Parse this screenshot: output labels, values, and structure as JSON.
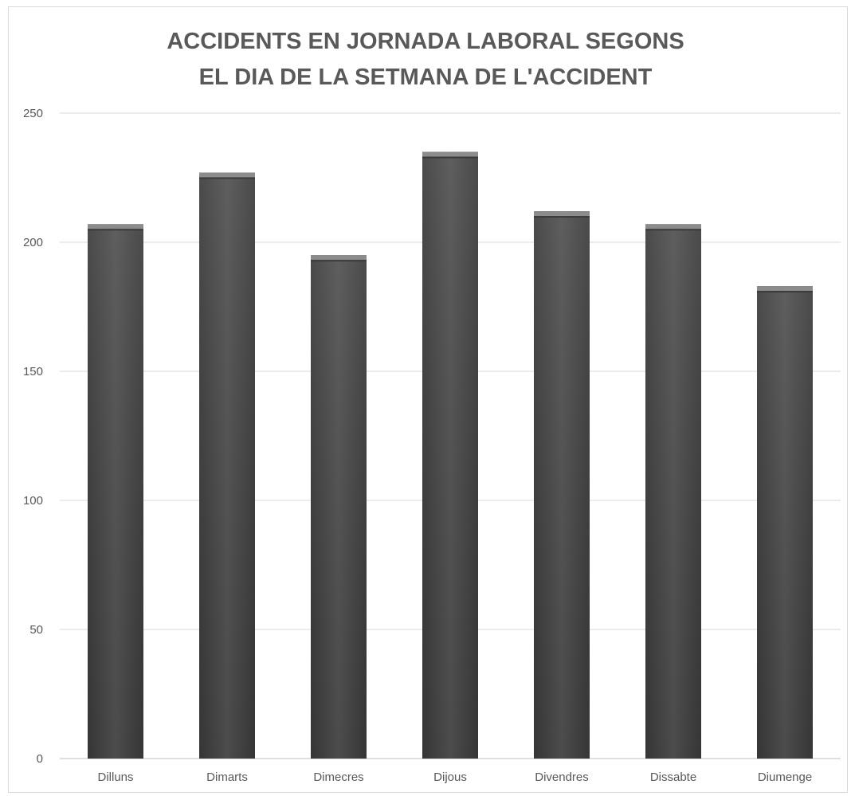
{
  "chart_data": {
    "type": "bar",
    "title_lines": [
      "ACCIDENTS EN JORNADA LABORAL SEGONS",
      "EL DIA DE LA SETMANA DE L'ACCIDENT"
    ],
    "categories": [
      "Dilluns",
      "Dimarts",
      "Dimecres",
      "Dijous",
      "Divendres",
      "Dissabte",
      "Diumenge"
    ],
    "values": [
      207,
      227,
      195,
      235,
      212,
      207,
      183
    ],
    "ylim": [
      0,
      250
    ],
    "yticks": [
      0,
      50,
      100,
      150,
      200,
      250
    ],
    "grid": true,
    "legend": "none",
    "bar_color": "#555555",
    "xlabel": "",
    "ylabel": ""
  }
}
